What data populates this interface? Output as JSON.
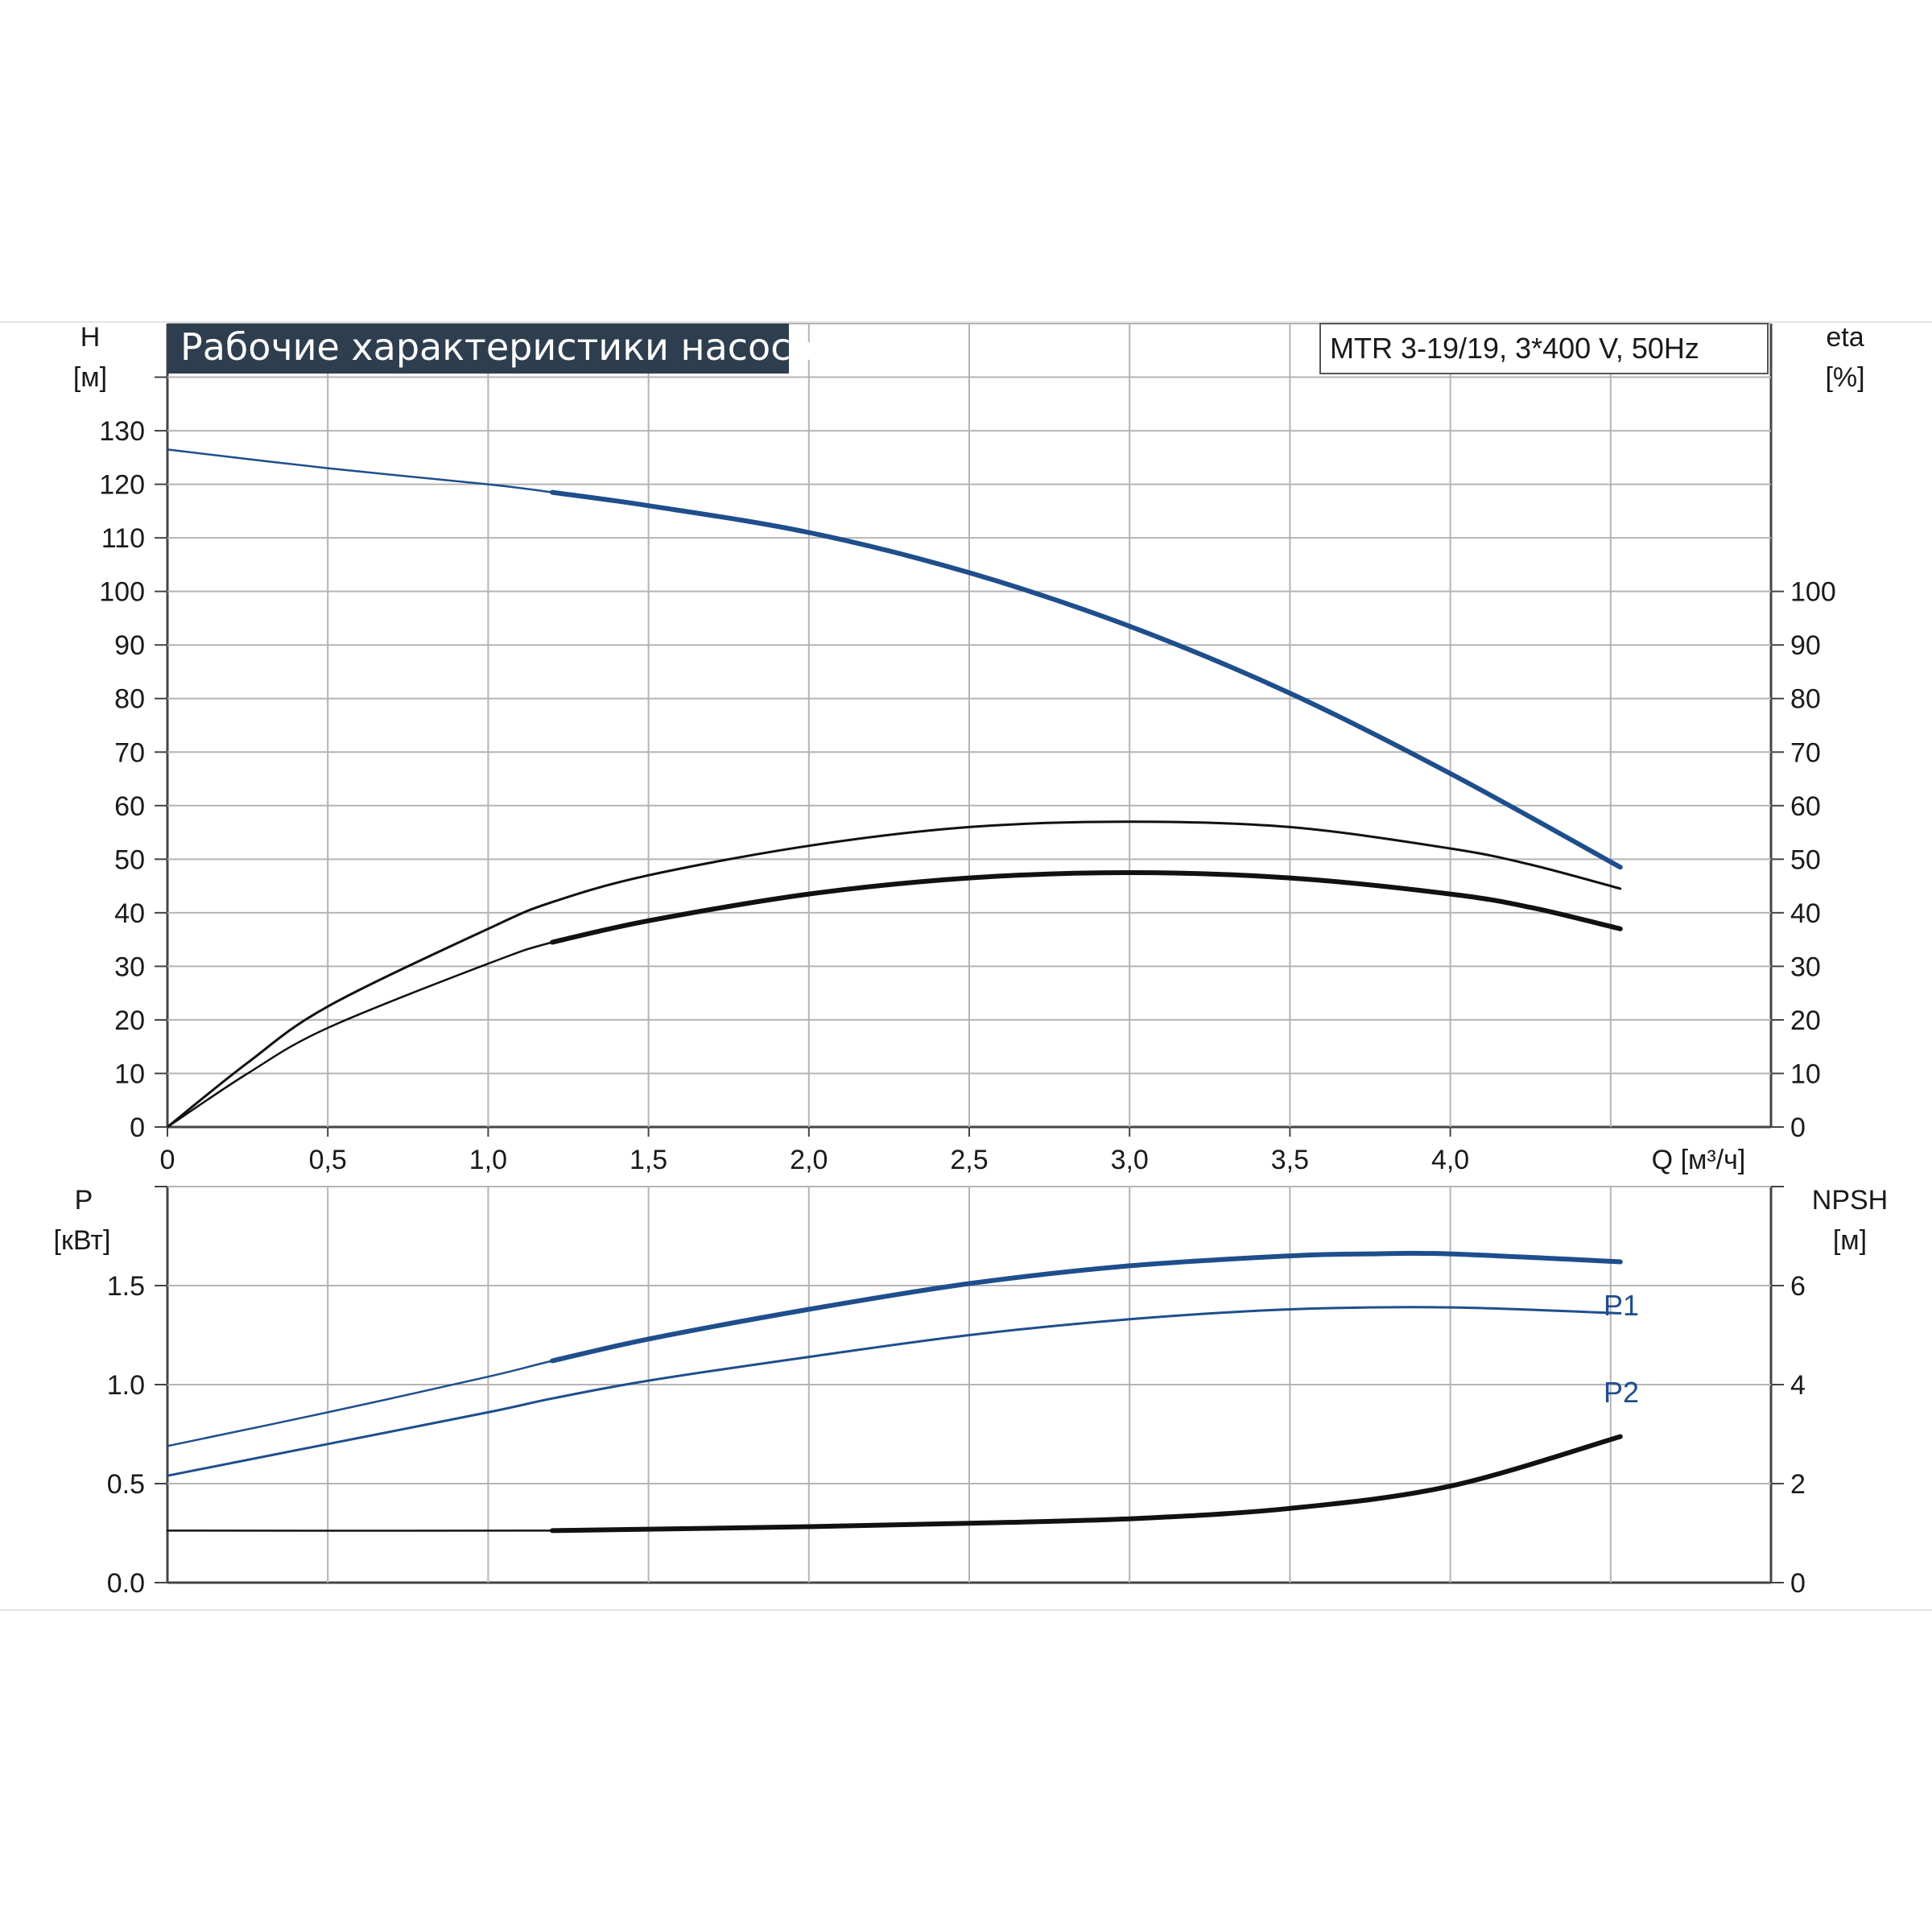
{
  "title": "Рабочие характеристики насоса",
  "model": "MTR 3-19/19, 3*400 V, 50Hz",
  "colors": {
    "blue": "#1f4e8c",
    "black": "#111111",
    "title_bg": "#2e3e4f",
    "grid": "#b4b4b4"
  },
  "chart_data": [
    {
      "type": "line",
      "panel": "upper",
      "x_ticks": [
        "0",
        "0,5",
        "1,0",
        "1,5",
        "2,0",
        "2,5",
        "3,0",
        "3,5",
        "4,0"
      ],
      "x_tick_values": [
        0,
        0.5,
        1.0,
        1.5,
        2.0,
        2.5,
        3.0,
        3.5,
        4.0
      ],
      "xlabel": "Q [м³/ч]",
      "xlim": [
        0,
        5.0
      ],
      "ylabel_left": [
        "H",
        "[м]"
      ],
      "ylabel_right": [
        "eta",
        "[%]"
      ],
      "ylim": [
        0,
        150
      ],
      "y_ticks_left": [
        0,
        10,
        20,
        30,
        40,
        50,
        60,
        70,
        80,
        90,
        100,
        110,
        120,
        130
      ],
      "y_ticks_right": [
        0,
        10,
        20,
        30,
        40,
        50,
        60,
        70,
        80,
        90,
        100
      ],
      "grid": true,
      "series": [
        {
          "key": "H",
          "axis": "left",
          "color": "blue",
          "x": [
            0,
            0.5,
            1.0,
            1.2,
            1.5,
            2.0,
            2.5,
            3.0,
            3.5,
            4.0,
            4.53
          ],
          "y": [
            126.5,
            123,
            120,
            118.5,
            116,
            111,
            103.5,
            93.5,
            81,
            66,
            48.5
          ],
          "bold_from": 1.2
        },
        {
          "key": "eta",
          "axis": "right",
          "color": "black",
          "x": [
            0,
            0.25,
            0.5,
            1.0,
            1.2,
            1.5,
            2.0,
            2.5,
            3.0,
            3.5,
            4.0,
            4.25,
            4.53
          ],
          "y": [
            0,
            12,
            22.5,
            37,
            42,
            47,
            52.5,
            56,
            57,
            56,
            52,
            49,
            44.5
          ]
        },
        {
          "key": "eta_total",
          "axis": "right",
          "color": "black",
          "x": [
            0,
            0.25,
            0.5,
            1.0,
            1.2,
            1.5,
            2.0,
            2.5,
            3.0,
            3.5,
            4.0,
            4.25,
            4.53
          ],
          "y": [
            0,
            10,
            18.5,
            30.5,
            34.5,
            38.5,
            43.5,
            46.5,
            47.5,
            46.5,
            43.5,
            41,
            37
          ],
          "bold_from": 1.2
        }
      ]
    },
    {
      "type": "line",
      "panel": "lower",
      "xlim": [
        0,
        5.0
      ],
      "ylabel_left": [
        "P",
        "[кВт]"
      ],
      "ylabel_right": [
        "NPSH",
        "[м]"
      ],
      "ylim_left": [
        0,
        2.0
      ],
      "ylim_right": [
        0,
        8
      ],
      "y_ticks_left": [
        "0.0",
        "0.5",
        "1.0",
        "1.5"
      ],
      "y_tick_values_left": [
        0,
        0.5,
        1.0,
        1.5
      ],
      "y_ticks_right": [
        0,
        2,
        4,
        6
      ],
      "grid": true,
      "series": [
        {
          "name": "P1",
          "axis": "left",
          "color": "blue",
          "x": [
            0,
            0.5,
            1.0,
            1.2,
            1.5,
            2.0,
            2.5,
            3.0,
            3.5,
            3.75,
            4.0,
            4.53
          ],
          "y": [
            0.69,
            0.86,
            1.04,
            1.12,
            1.23,
            1.38,
            1.51,
            1.6,
            1.65,
            1.66,
            1.66,
            1.62
          ],
          "bold_from": 1.2
        },
        {
          "name": "P2",
          "axis": "left",
          "color": "blue",
          "x": [
            0,
            0.5,
            1.0,
            1.2,
            1.5,
            2.0,
            2.5,
            3.0,
            3.5,
            4.0,
            4.53
          ],
          "y": [
            0.54,
            0.7,
            0.86,
            0.93,
            1.02,
            1.14,
            1.25,
            1.33,
            1.38,
            1.39,
            1.36
          ]
        },
        {
          "key": "NPSH",
          "axis": "right",
          "color": "black",
          "x": [
            0,
            1.2,
            1.5,
            2.0,
            2.5,
            3.0,
            3.5,
            4.0,
            4.53
          ],
          "y": [
            1.05,
            1.05,
            1.08,
            1.13,
            1.2,
            1.29,
            1.5,
            1.95,
            2.95
          ],
          "bold_from": 1.2
        }
      ]
    }
  ]
}
